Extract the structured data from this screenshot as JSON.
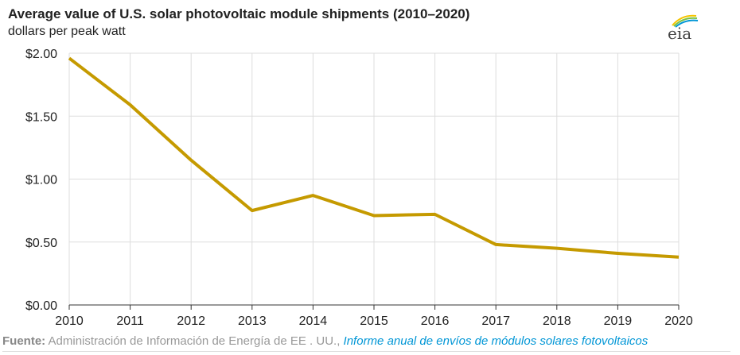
{
  "chart_data": {
    "type": "line",
    "title": "Average value of U.S. solar photovoltaic module shipments (2010–2020)",
    "ylabel": "dollars per peak watt",
    "xlabel": "",
    "x": [
      2010,
      2011,
      2012,
      2013,
      2014,
      2015,
      2016,
      2017,
      2018,
      2019,
      2020
    ],
    "series": [
      {
        "name": "Average value",
        "values": [
          1.96,
          1.59,
          1.15,
          0.75,
          0.87,
          0.71,
          0.72,
          0.48,
          0.45,
          0.41,
          0.38
        ],
        "color": "#c59a00"
      }
    ],
    "xlim": [
      2010,
      2020
    ],
    "ylim": [
      0,
      2
    ],
    "yticks": [
      0,
      0.5,
      1,
      1.5,
      2
    ],
    "ytick_labels": [
      "$0.00",
      "$0.50",
      "$1.00",
      "$1.50",
      "$2.00"
    ],
    "grid": true
  },
  "logo": "eia",
  "footer": {
    "label": "Fuente:",
    "source": "Administración de Información de Energía de EE . UU.,",
    "link": "Informe anual de envíos de módulos solares fotovoltaicos"
  }
}
